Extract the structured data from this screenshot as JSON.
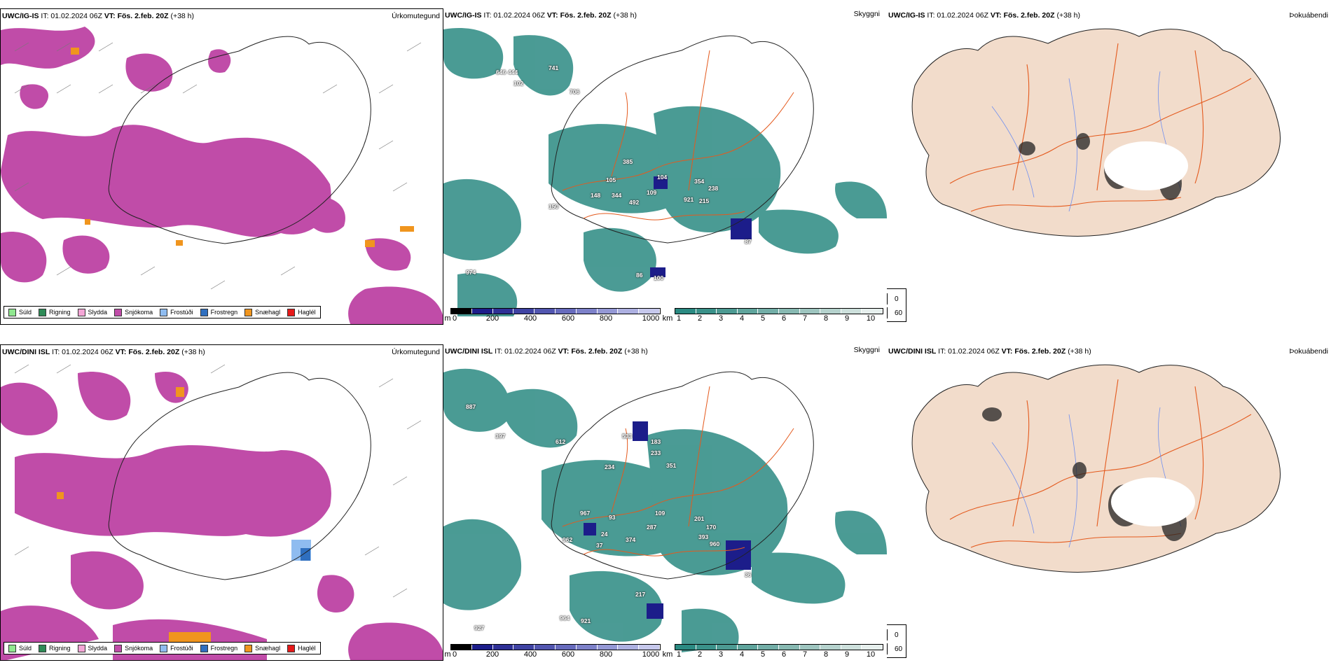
{
  "rows": [
    {
      "model": "UWC/IG-IS",
      "it_label": "IT: 01.02.2024 06Z",
      "vt_label": "VT: Fös. 2.feb. 20Z",
      "lead": "(+38 h)",
      "panels": {
        "precip": {
          "title": "Úrkomutegund"
        },
        "vis": {
          "title": "Skyggni",
          "labels": [
            "646",
            "444",
            "741",
            "102",
            "706",
            "385",
            "104",
            "354",
            "238",
            "105",
            "148",
            "344",
            "109",
            "921",
            "215",
            "150",
            "492",
            "974",
            "86",
            "100",
            "87"
          ]
        },
        "fog": {
          "title": "Þokuábendi"
        }
      }
    },
    {
      "model": "UWC/DINI ISL",
      "it_label": "IT: 01.02.2024 06Z",
      "vt_label": "VT: Fös. 2.feb. 20Z",
      "lead": "(+38 h)",
      "panels": {
        "precip": {
          "title": "Úrkomutegund"
        },
        "vis": {
          "title": "Skyggni",
          "labels": [
            "887",
            "397",
            "612",
            "533",
            "183",
            "233",
            "351",
            "234",
            "967",
            "93",
            "109",
            "201",
            "170",
            "393",
            "960",
            "962",
            "24",
            "374",
            "287",
            "37",
            "217",
            "36",
            "964",
            "921",
            "927"
          ]
        },
        "fog": {
          "title": "Þokuábendi"
        }
      }
    }
  ],
  "precip_legend": [
    {
      "label": "Súld",
      "color": "#90e890"
    },
    {
      "label": "Rigning",
      "color": "#2e8b57"
    },
    {
      "label": "Slydda",
      "color": "#f4a6d6"
    },
    {
      "label": "Snjókoma",
      "color": "#c04ca8"
    },
    {
      "label": "Frostúði",
      "color": "#8fbcf0"
    },
    {
      "label": "Frostregn",
      "color": "#2f6fbf"
    },
    {
      "label": "Snæhagl",
      "color": "#f0951e"
    },
    {
      "label": "Haglél",
      "color": "#e61919"
    }
  ],
  "height_scale": {
    "unit": "m",
    "ticks": [
      "0",
      "200",
      "400",
      "600",
      "800",
      "1000"
    ]
  },
  "vis_scale": {
    "unit": "km",
    "ticks": [
      "1",
      "2",
      "3",
      "4",
      "5",
      "6",
      "7",
      "8",
      "9",
      "10"
    ]
  },
  "cloud_legend": {
    "low": "0",
    "high": "60"
  },
  "colors": {
    "snow": "#c04ca8",
    "ice": "#f0951e",
    "teal": "#2b8a82",
    "heightdark": "#1c1d8a",
    "land": "#f2dccb",
    "roads": "#e45a1e",
    "rivers": "#6f8ff0",
    "coast": "#111111"
  }
}
